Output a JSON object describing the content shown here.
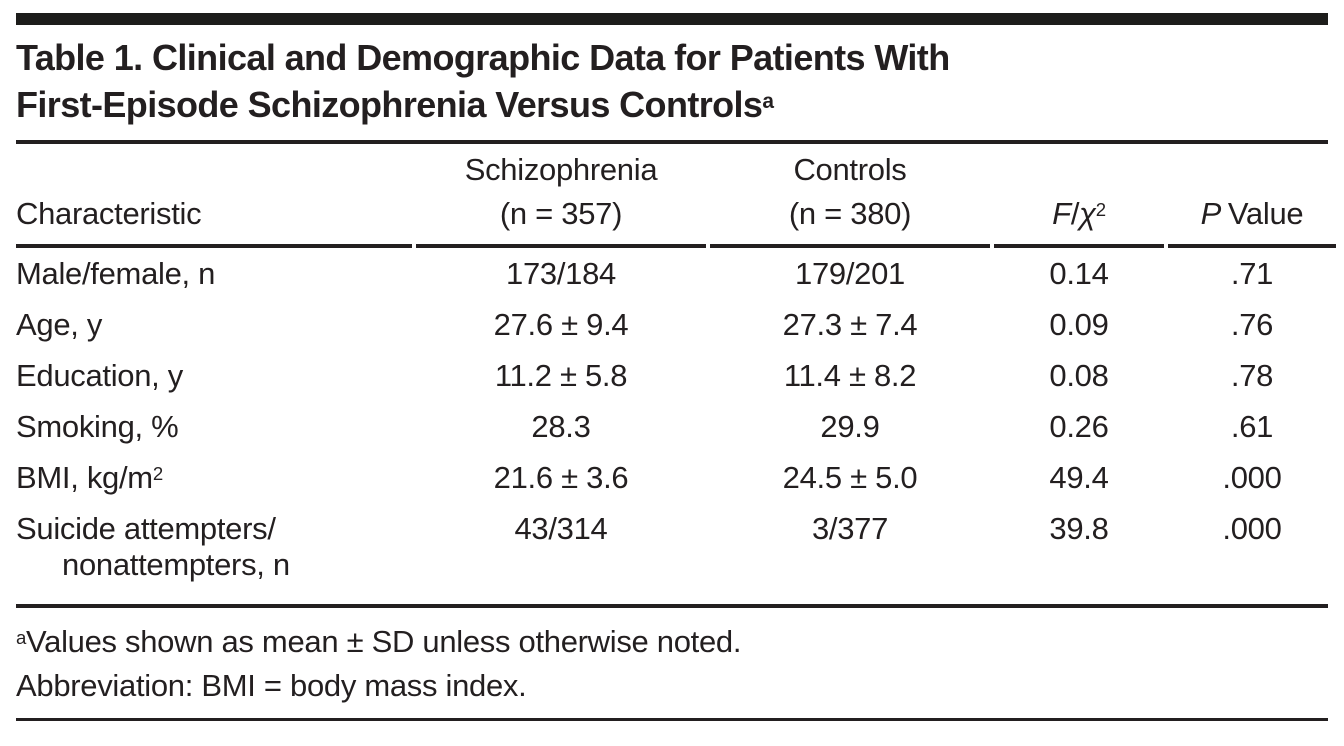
{
  "colors": {
    "text": "#231f20",
    "rule": "#231f20",
    "top_bar": "#1d1d1b",
    "background": "#ffffff"
  },
  "table": {
    "title": {
      "line1": "Table 1. Clinical and Demographic Data for Patients With",
      "line2": "First-Episode Schizophrenia Versus Controls",
      "superscript": "a"
    },
    "header": {
      "characteristic": "Characteristic",
      "schizophrenia": {
        "line1": "Schizophrenia",
        "line2": "(n = 357)"
      },
      "controls": {
        "line1": "Controls",
        "line2": "(n = 380)"
      },
      "f_chi": {
        "f": "F",
        "slash": "/",
        "chi": "χ",
        "sup": "2"
      },
      "p_value": {
        "p": "P",
        "rest": "Value"
      }
    },
    "rows": [
      {
        "label": "Male/female, n",
        "schizophrenia": "173/184",
        "controls": "179/201",
        "f": "0.14",
        "p": ".71"
      },
      {
        "label": "Age, y",
        "schizophrenia": "27.6 ± 9.4",
        "controls": "27.3 ± 7.4",
        "f": "0.09",
        "p": ".76"
      },
      {
        "label": "Education, y",
        "schizophrenia": "11.2 ± 5.8",
        "controls": "11.4 ± 8.2",
        "f": "0.08",
        "p": ".78"
      },
      {
        "label": "Smoking, %",
        "schizophrenia": "28.3",
        "controls": "29.9",
        "f": "0.26",
        "p": ".61"
      },
      {
        "label": "BMI, kg/m",
        "label_sup": "2",
        "schizophrenia": "21.6 ± 3.6",
        "controls": "24.5 ± 5.0",
        "f": "49.4",
        "p": ".000"
      },
      {
        "label": "Suicide attempters/",
        "label2": "nonattempters, n",
        "schizophrenia": "43/314",
        "controls": "3/377",
        "f": "39.8",
        "p": ".000"
      }
    ],
    "footnotes": [
      {
        "marker": "a",
        "text": "Values shown as mean ± SD unless otherwise noted."
      },
      {
        "text": "Abbreviation: BMI = body mass index."
      }
    ]
  }
}
